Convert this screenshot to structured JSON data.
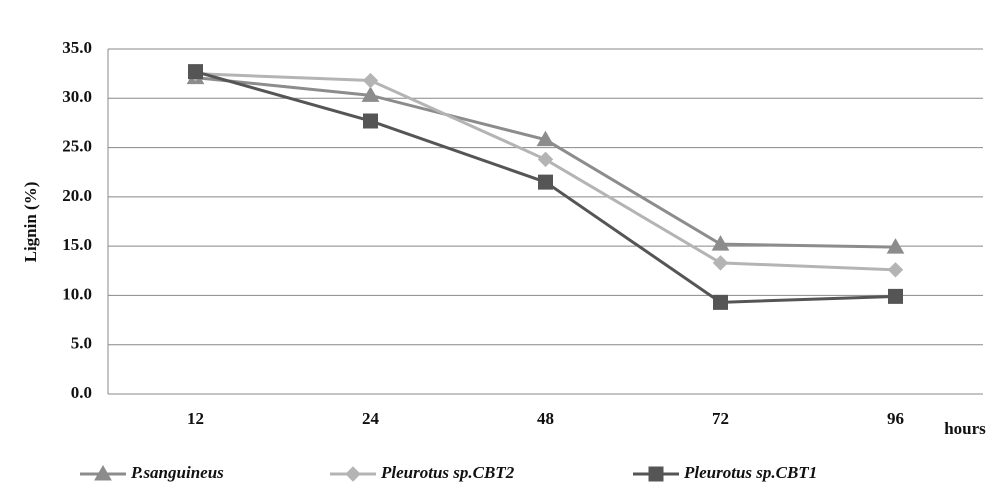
{
  "chart_data": {
    "type": "line",
    "y_label": "Lignin (%)",
    "x_label": "hours",
    "categories": [
      "12",
      "24",
      "48",
      "72",
      "96"
    ],
    "series": [
      {
        "name": "P.sanguineus",
        "color": "#8c8c8c",
        "marker": "triangle",
        "values": [
          32.1,
          30.3,
          25.8,
          15.2,
          14.9
        ]
      },
      {
        "name": "Pleurotus sp.CBT2",
        "color": "#b4b4b4",
        "marker": "diamond",
        "values": [
          32.5,
          31.8,
          23.8,
          13.3,
          12.6
        ]
      },
      {
        "name": "Pleurotus sp.CBT1",
        "color": "#555555",
        "marker": "square",
        "values": [
          32.7,
          27.7,
          21.5,
          9.3,
          9.9
        ]
      }
    ],
    "ylim": [
      0,
      35
    ],
    "yticks": [
      {
        "value": 0,
        "label": "0.0"
      },
      {
        "value": 5,
        "label": "5.0"
      },
      {
        "value": 10,
        "label": "10.0"
      },
      {
        "value": 15,
        "label": "15.0"
      },
      {
        "value": 20,
        "label": "20.0"
      },
      {
        "value": 25,
        "label": "25.0"
      },
      {
        "value": 30,
        "label": "30.0"
      },
      {
        "value": 35,
        "label": "35.0"
      }
    ],
    "grid": true,
    "legend": "bottom"
  }
}
